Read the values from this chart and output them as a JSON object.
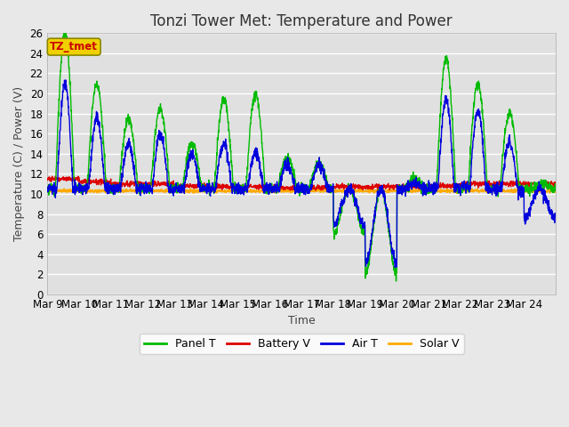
{
  "title": "Tonzi Tower Met: Temperature and Power",
  "xlabel": "Time",
  "ylabel": "Temperature (C) / Power (V)",
  "ylim": [
    0,
    26
  ],
  "yticks": [
    0,
    2,
    4,
    6,
    8,
    10,
    12,
    14,
    16,
    18,
    20,
    22,
    24,
    26
  ],
  "x_labels": [
    "Mar 9",
    "Mar 10",
    "Mar 11",
    "Mar 12",
    "Mar 13",
    "Mar 14",
    "Mar 15",
    "Mar 16",
    "Mar 17",
    "Mar 18",
    "Mar 19",
    "Mar 20",
    "Mar 21",
    "Mar 22",
    "Mar 23",
    "Mar 24"
  ],
  "annotation_text": "TZ_tmet",
  "annotation_color": "#cc0000",
  "annotation_bg": "#f0d000",
  "line_colors": [
    "#00bb00",
    "#dd0000",
    "#0000dd",
    "#ffaa00"
  ],
  "line_labels": [
    "Panel T",
    "Battery V",
    "Air T",
    "Solar V"
  ],
  "fig_bg": "#e8e8e8",
  "plot_bg": "#e0e0e0",
  "grid_color": "#ffffff",
  "title_fontsize": 12,
  "axis_fontsize": 9,
  "tick_fontsize": 8.5,
  "linewidth": 1.0
}
